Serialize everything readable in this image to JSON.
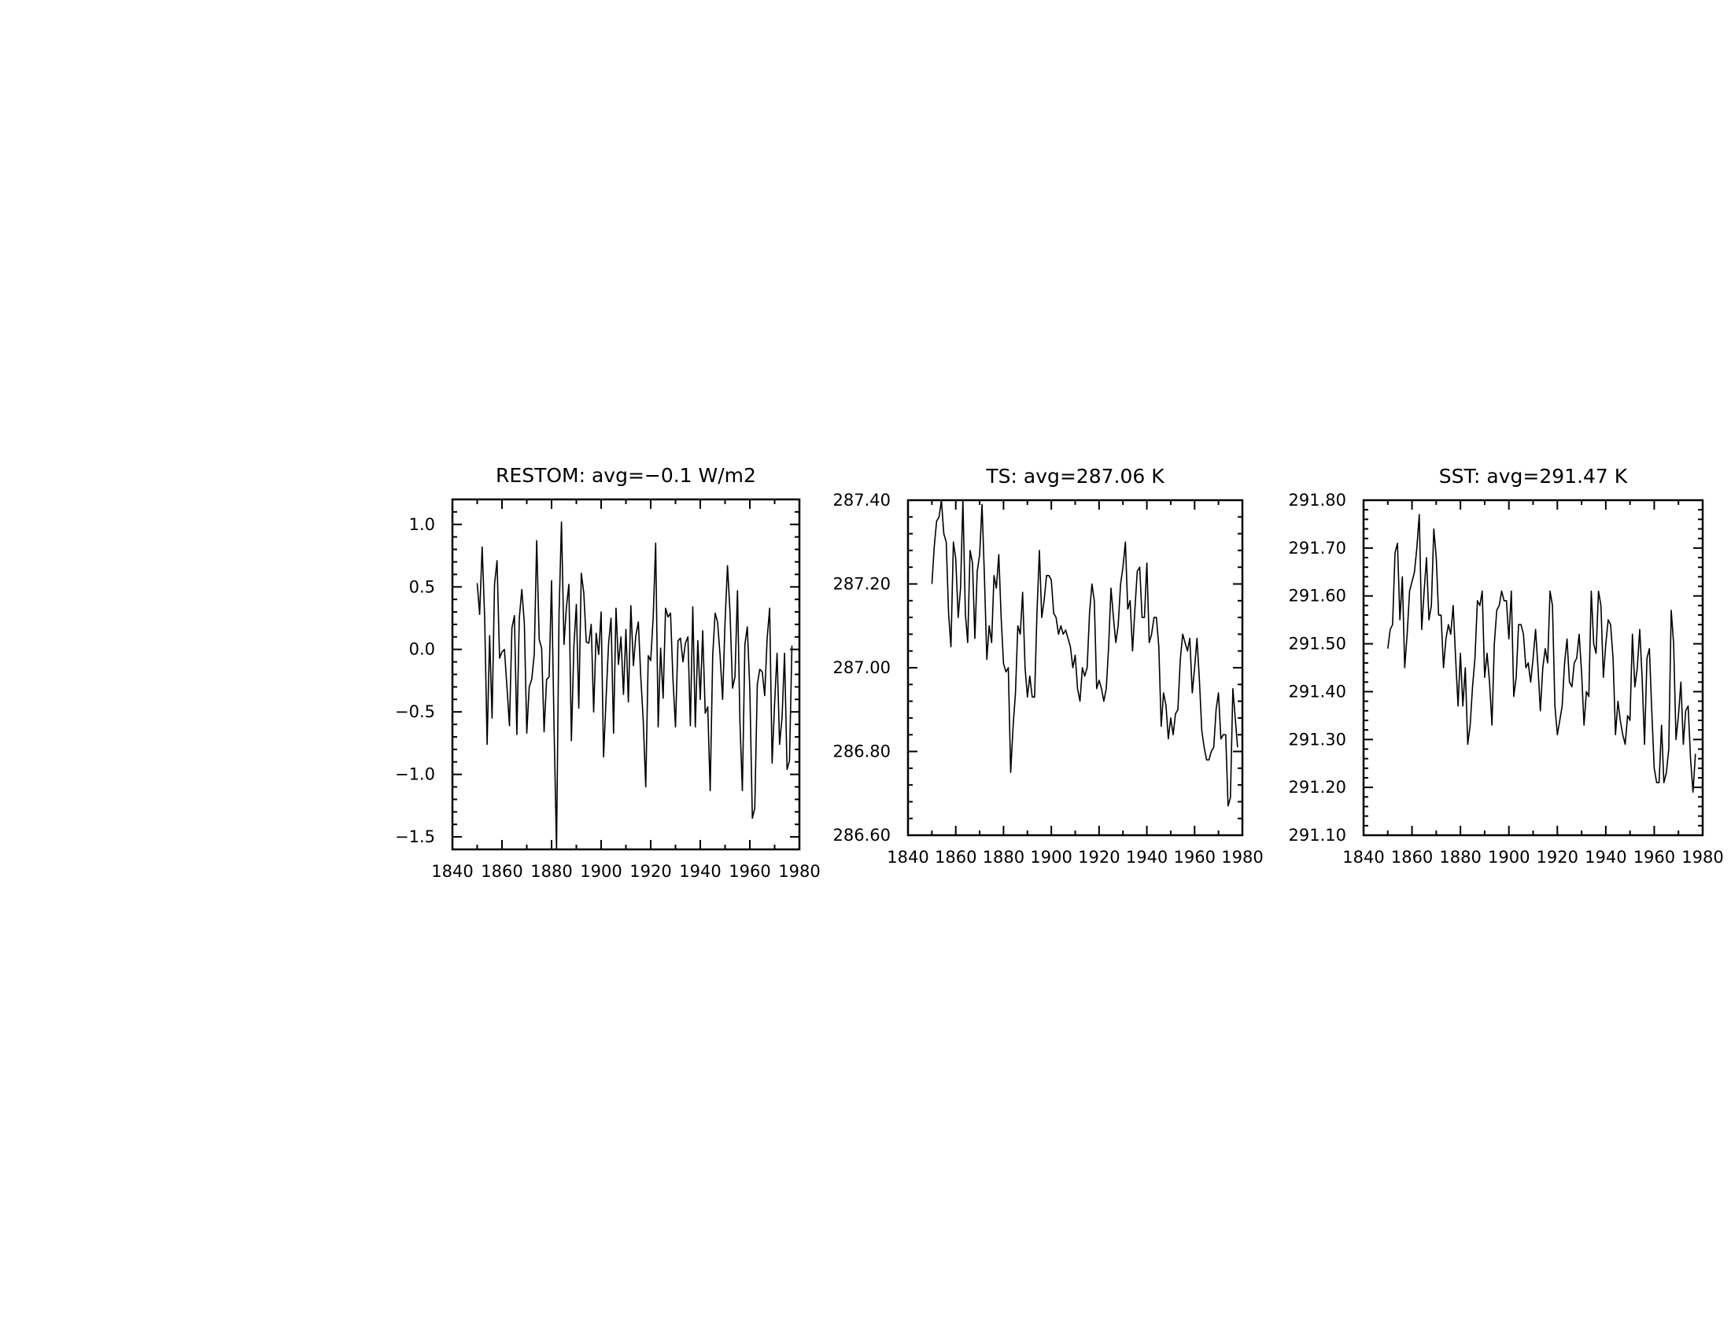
{
  "chart_data": [
    {
      "type": "line",
      "title": "RESTOM: avg=−0.1 W/m2",
      "xlabel": "",
      "ylabel": "",
      "xlim": [
        1840,
        1980
      ],
      "ylim": [
        -1.6,
        1.2
      ],
      "x_ticks": [
        1840,
        1860,
        1880,
        1900,
        1920,
        1940,
        1960,
        1980
      ],
      "x_tick_labels": [
        "1840",
        "1860",
        "1880",
        "1900",
        "1920",
        "1940",
        "1960",
        "1980"
      ],
      "y_ticks": [
        1.0,
        0.5,
        0.0,
        -0.5,
        -1.0,
        -1.5
      ],
      "y_tick_labels": [
        "1.0",
        "0.5",
        "0.0",
        "−0.5",
        "−1.0",
        "−1.5"
      ],
      "x_minor_step": 10,
      "y_minor_step": 0.1,
      "ticks_inward_mirrored": true,
      "grid": false,
      "x_start": 1850,
      "x_step": 1,
      "values": [
        0.53,
        0.28,
        0.82,
        0.25,
        -0.76,
        0.11,
        -0.55,
        0.52,
        0.71,
        -0.07,
        -0.02,
        0.0,
        -0.3,
        -0.61,
        0.17,
        0.27,
        -0.68,
        0.25,
        0.48,
        0.21,
        -0.67,
        -0.3,
        -0.24,
        -0.04,
        0.87,
        0.08,
        0.01,
        -0.66,
        -0.24,
        -0.22,
        0.55,
        -0.6,
        -1.6,
        0.28,
        1.02,
        0.04,
        0.34,
        0.52,
        -0.73,
        0.03,
        0.36,
        -0.47,
        0.61,
        0.45,
        0.06,
        0.05,
        0.2,
        -0.5,
        0.13,
        -0.04,
        0.3,
        -0.86,
        -0.39,
        0.05,
        0.25,
        -0.67,
        0.33,
        -0.12,
        0.1,
        -0.36,
        0.16,
        -0.42,
        0.35,
        -0.13,
        0.11,
        0.22,
        -0.22,
        -0.57,
        -1.1,
        -0.05,
        -0.09,
        0.26,
        0.85,
        -0.62,
        0.01,
        -0.39,
        0.33,
        0.26,
        0.29,
        -0.24,
        -0.62,
        0.07,
        0.09,
        -0.1,
        0.05,
        0.1,
        -0.61,
        0.34,
        -0.62,
        0.07,
        -0.4,
        0.15,
        -0.51,
        -0.46,
        -1.13,
        -0.05,
        0.29,
        0.22,
        -0.05,
        -0.4,
        0.22,
        0.67,
        0.3,
        -0.31,
        -0.22,
        0.47,
        -0.58,
        -1.13,
        0.04,
        0.18,
        -0.32,
        -1.35,
        -1.27,
        -0.28,
        -0.16,
        -0.18,
        -0.37,
        0.09,
        0.33,
        -0.91,
        -0.43,
        -0.03,
        -0.76,
        -0.54,
        -0.03,
        -0.96,
        -0.89,
        0.03
      ]
    },
    {
      "type": "line",
      "title": "TS: avg=287.06 K",
      "xlabel": "",
      "ylabel": "",
      "xlim": [
        1840,
        1980
      ],
      "ylim": [
        286.6,
        287.4
      ],
      "x_ticks": [
        1840,
        1860,
        1880,
        1900,
        1920,
        1940,
        1960,
        1980
      ],
      "x_tick_labels": [
        "1840",
        "1860",
        "1880",
        "1900",
        "1920",
        "1940",
        "1960",
        "1980"
      ],
      "y_ticks": [
        287.4,
        287.2,
        287.0,
        286.8,
        286.6
      ],
      "y_tick_labels": [
        "287.40",
        "287.20",
        "287.00",
        "286.80",
        "286.60"
      ],
      "x_minor_step": 10,
      "y_minor_step": 0.04,
      "ticks_inward_mirrored": true,
      "grid": false,
      "x_start": 1850,
      "x_step": 1,
      "values": [
        287.2,
        287.29,
        287.35,
        287.36,
        287.4,
        287.32,
        287.3,
        287.13,
        287.05,
        287.3,
        287.26,
        287.12,
        287.19,
        287.4,
        287.13,
        287.06,
        287.28,
        287.25,
        287.07,
        287.23,
        287.27,
        287.39,
        287.22,
        287.02,
        287.1,
        287.06,
        287.22,
        287.19,
        287.27,
        287.12,
        287.01,
        286.99,
        287.0,
        286.75,
        286.86,
        286.94,
        287.1,
        287.08,
        287.18,
        287.0,
        286.93,
        286.98,
        286.93,
        286.93,
        287.13,
        287.28,
        287.12,
        287.16,
        287.22,
        287.22,
        287.21,
        287.13,
        287.12,
        287.08,
        287.1,
        287.08,
        287.09,
        287.07,
        287.05,
        287.0,
        287.03,
        286.95,
        286.92,
        287.0,
        286.98,
        287.0,
        287.13,
        287.2,
        287.16,
        286.95,
        286.97,
        286.95,
        286.92,
        286.95,
        287.05,
        287.19,
        287.12,
        287.06,
        287.1,
        287.2,
        287.24,
        287.3,
        287.14,
        287.16,
        287.04,
        287.14,
        287.23,
        287.24,
        287.12,
        287.12,
        287.25,
        287.06,
        287.08,
        287.12,
        287.12,
        287.05,
        286.86,
        286.94,
        286.91,
        286.83,
        286.88,
        286.84,
        286.89,
        286.9,
        287.02,
        287.08,
        287.06,
        287.04,
        287.07,
        286.94,
        287.0,
        287.07,
        286.97,
        286.85,
        286.81,
        286.78,
        286.78,
        286.8,
        286.81,
        286.9,
        286.94,
        286.83,
        286.84,
        286.84,
        286.67,
        286.69,
        286.95,
        286.88,
        286.81
      ]
    },
    {
      "type": "line",
      "title": "SST: avg=291.47 K",
      "xlabel": "",
      "ylabel": "",
      "xlim": [
        1840,
        1980
      ],
      "ylim": [
        291.1,
        291.8
      ],
      "x_ticks": [
        1840,
        1860,
        1880,
        1900,
        1920,
        1940,
        1960,
        1980
      ],
      "x_tick_labels": [
        "1840",
        "1860",
        "1880",
        "1900",
        "1920",
        "1940",
        "1960",
        "1980"
      ],
      "y_ticks": [
        291.8,
        291.7,
        291.6,
        291.5,
        291.4,
        291.3,
        291.2,
        291.1
      ],
      "y_tick_labels": [
        "291.80",
        "291.70",
        "291.60",
        "291.50",
        "291.40",
        "291.30",
        "291.20",
        "291.10"
      ],
      "x_minor_step": 10,
      "y_minor_step": 0.02,
      "ticks_inward_mirrored": true,
      "grid": false,
      "x_start": 1850,
      "x_step": 1,
      "values": [
        291.49,
        291.53,
        291.54,
        291.69,
        291.71,
        291.55,
        291.64,
        291.45,
        291.52,
        291.61,
        291.63,
        291.65,
        291.7,
        291.77,
        291.53,
        291.61,
        291.68,
        291.55,
        291.58,
        291.74,
        291.68,
        291.56,
        291.56,
        291.45,
        291.51,
        291.54,
        291.52,
        291.58,
        291.47,
        291.37,
        291.48,
        291.37,
        291.45,
        291.29,
        291.33,
        291.41,
        291.47,
        291.59,
        291.58,
        291.61,
        291.43,
        291.48,
        291.42,
        291.33,
        291.5,
        291.57,
        291.58,
        291.61,
        291.59,
        291.59,
        291.51,
        291.61,
        291.39,
        291.43,
        291.54,
        291.54,
        291.52,
        291.45,
        291.46,
        291.42,
        291.47,
        291.53,
        291.45,
        291.36,
        291.45,
        291.49,
        291.46,
        291.61,
        291.58,
        291.37,
        291.31,
        291.34,
        291.37,
        291.46,
        291.51,
        291.42,
        291.41,
        291.46,
        291.47,
        291.52,
        291.44,
        291.33,
        291.4,
        291.39,
        291.61,
        291.5,
        291.48,
        291.61,
        291.58,
        291.43,
        291.5,
        291.55,
        291.54,
        291.47,
        291.31,
        291.38,
        291.34,
        291.31,
        291.29,
        291.35,
        291.34,
        291.52,
        291.41,
        291.45,
        291.53,
        291.43,
        291.29,
        291.47,
        291.49,
        291.36,
        291.24,
        291.21,
        291.21,
        291.33,
        291.21,
        291.23,
        291.28,
        291.57,
        291.5,
        291.3,
        291.35,
        291.42,
        291.29,
        291.36,
        291.37,
        291.26,
        291.19,
        291.27
      ]
    }
  ]
}
